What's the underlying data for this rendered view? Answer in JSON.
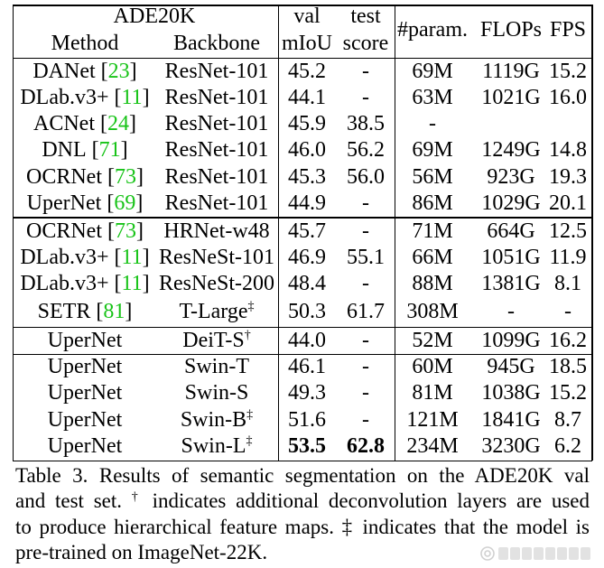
{
  "table": {
    "header": {
      "dataset": "ADE20K",
      "method": "Method",
      "backbone": "Backbone",
      "val_top": "val",
      "val_bottom": "mIoU",
      "test_top": "test",
      "test_bottom": "score",
      "params": "#param.",
      "flops": "FLOPs",
      "fps": "FPS"
    },
    "sections": [
      {
        "rows": [
          {
            "method": "DANet",
            "ref": "[23]",
            "backbone": "ResNet-101",
            "backbone_sup": "",
            "val_miou": "45.2",
            "test_score": "-",
            "params": "69M",
            "flops": "1119G",
            "fps": "15.2"
          },
          {
            "method": "DLab.v3+",
            "ref": "[11]",
            "backbone": "ResNet-101",
            "backbone_sup": "",
            "val_miou": "44.1",
            "test_score": "-",
            "params": "63M",
            "flops": "1021G",
            "fps": "16.0"
          },
          {
            "method": "ACNet",
            "ref": "[24]",
            "backbone": "ResNet-101",
            "backbone_sup": "",
            "val_miou": "45.9",
            "test_score": "38.5",
            "params": "-",
            "flops": "",
            "fps": ""
          },
          {
            "method": "DNL",
            "ref": "[71]",
            "backbone": "ResNet-101",
            "backbone_sup": "",
            "val_miou": "46.0",
            "test_score": "56.2",
            "params": "69M",
            "flops": "1249G",
            "fps": "14.8"
          },
          {
            "method": "OCRNet",
            "ref": "[73]",
            "backbone": "ResNet-101",
            "backbone_sup": "",
            "val_miou": "45.3",
            "test_score": "56.0",
            "params": "56M",
            "flops": "923G",
            "fps": "19.3"
          },
          {
            "method": "UperNet",
            "ref": "[69]",
            "backbone": "ResNet-101",
            "backbone_sup": "",
            "val_miou": "44.9",
            "test_score": "-",
            "params": "86M",
            "flops": "1029G",
            "fps": "20.1"
          }
        ]
      },
      {
        "rows": [
          {
            "method": "OCRNet",
            "ref": "[73]",
            "backbone": "HRNet-w48",
            "backbone_sup": "",
            "val_miou": "45.7",
            "test_score": "-",
            "params": "71M",
            "flops": "664G",
            "fps": "12.5"
          },
          {
            "method": "DLab.v3+",
            "ref": "[11]",
            "backbone": "ResNeSt-101",
            "backbone_sup": "",
            "val_miou": "46.9",
            "test_score": "55.1",
            "params": "66M",
            "flops": "1051G",
            "fps": "11.9"
          },
          {
            "method": "DLab.v3+",
            "ref": "[11]",
            "backbone": "ResNeSt-200",
            "backbone_sup": "",
            "val_miou": "48.4",
            "test_score": "-",
            "params": "88M",
            "flops": "1381G",
            "fps": "8.1"
          },
          {
            "method": "SETR",
            "ref": "[81]",
            "backbone": "T-Large",
            "backbone_sup": "‡",
            "val_miou": "50.3",
            "test_score": "61.7",
            "params": "308M",
            "flops": "-",
            "fps": "-"
          }
        ]
      },
      {
        "rows": [
          {
            "method": "UperNet",
            "ref": "",
            "backbone": "DeiT-S",
            "backbone_sup": "†",
            "val_miou": "44.0",
            "test_score": "-",
            "params": "52M",
            "flops": "1099G",
            "fps": "16.2"
          }
        ]
      },
      {
        "rows": [
          {
            "method": "UperNet",
            "ref": "",
            "backbone": "Swin-T",
            "backbone_sup": "",
            "val_miou": "46.1",
            "test_score": "-",
            "params": "60M",
            "flops": "945G",
            "fps": "18.5"
          },
          {
            "method": "UperNet",
            "ref": "",
            "backbone": "Swin-S",
            "backbone_sup": "",
            "val_miou": "49.3",
            "test_score": "-",
            "params": "81M",
            "flops": "1038G",
            "fps": "15.2"
          },
          {
            "method": "UperNet",
            "ref": "",
            "backbone": "Swin-B",
            "backbone_sup": "‡",
            "val_miou": "51.6",
            "test_score": "-",
            "params": "121M",
            "flops": "1841G",
            "fps": "8.7"
          },
          {
            "method": "UperNet",
            "ref": "",
            "backbone": "Swin-L",
            "backbone_sup": "‡",
            "val_miou": "53.5",
            "test_score": "62.8",
            "params": "234M",
            "flops": "3230G",
            "fps": "6.2",
            "bold": [
              "val_miou",
              "test_score"
            ]
          }
        ]
      }
    ]
  },
  "caption": {
    "lines": [
      "Table 3. Results of semantic segmentation on the ADE20K val",
      "and test set. † indicates additional deconvolution layers are used",
      "to produce hierarchical feature maps. ‡ indicates that the model is",
      "pre-trained on ImageNet-22K."
    ]
  },
  "colors": {
    "text": "#000000",
    "citation": "#17c317",
    "rule": "#000000",
    "background": "#ffffff",
    "watermark": "#9a9a9a"
  },
  "watermark": {
    "text": "稀土掘金技术社区",
    "icon": "community-logo-icon"
  }
}
